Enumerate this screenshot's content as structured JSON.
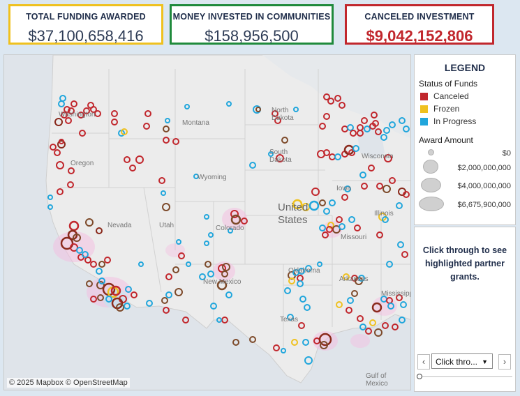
{
  "kpis": {
    "total_funding": {
      "label": "TOTAL FUNDING AWARDED",
      "value": "$37,100,658,416",
      "color": "#efc11f"
    },
    "invested": {
      "label": "MONEY INVESTED IN COMMUNITIES",
      "value": "$158,956,500",
      "color": "#1f8a3c"
    },
    "canceled": {
      "label": "CANCELED INVESTMENT",
      "value": "$9,042,152,806",
      "color": "#c1272d"
    }
  },
  "map": {
    "attribution": "© 2025 Mapbox  © OpenStreetMap",
    "labels": {
      "washington": "Washington",
      "oregon": "Oregon",
      "montana": "Montana",
      "north_dakota": "North Dakota",
      "south_dakota": "South Dakota",
      "wyoming": "Wyoming",
      "nevada": "Nevada",
      "utah": "Utah",
      "colorado": "Colorado",
      "iowa": "Iowa",
      "wisconsin": "Wisconsin",
      "illinois": "Illinois",
      "missouri": "Missouri",
      "oklahoma": "Oklahoma",
      "arkansas": "Arkansas",
      "new_mexico": "New Mexico",
      "texas": "Texas",
      "mississippi": "Mississippi",
      "united_states": "United States",
      "gulf": "Gulf of Mexico"
    }
  },
  "legend": {
    "title": "LEGEND",
    "status_title": "Status of Funds",
    "status": [
      {
        "label": "Canceled",
        "color": "#c1272d"
      },
      {
        "label": "Frozen",
        "color": "#efc11f"
      },
      {
        "label": "In Progress",
        "color": "#21a6dc"
      }
    ],
    "amount_title": "Award Amount",
    "amounts": [
      "$0",
      "$2,000,000,000",
      "$4,000,000,000",
      "$6,675,900,000"
    ]
  },
  "panel": {
    "message": "Click through to see highlighted partner grants.",
    "dropdown_value": "Click thro...",
    "prev": "‹",
    "next": "›"
  }
}
